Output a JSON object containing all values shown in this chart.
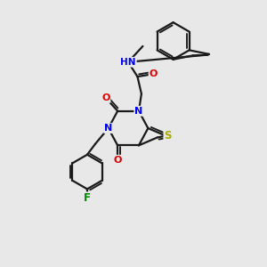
{
  "bg_color": "#e8e8e8",
  "bond_color": "#1a1a1a",
  "N_color": "#0000ee",
  "O_color": "#dd0000",
  "S_color": "#aaaa00",
  "F_color": "#008800",
  "line_width": 1.6,
  "figsize": [
    3.0,
    3.0
  ],
  "dpi": 100,
  "xlim": [
    0,
    10
  ],
  "ylim": [
    0,
    10
  ]
}
